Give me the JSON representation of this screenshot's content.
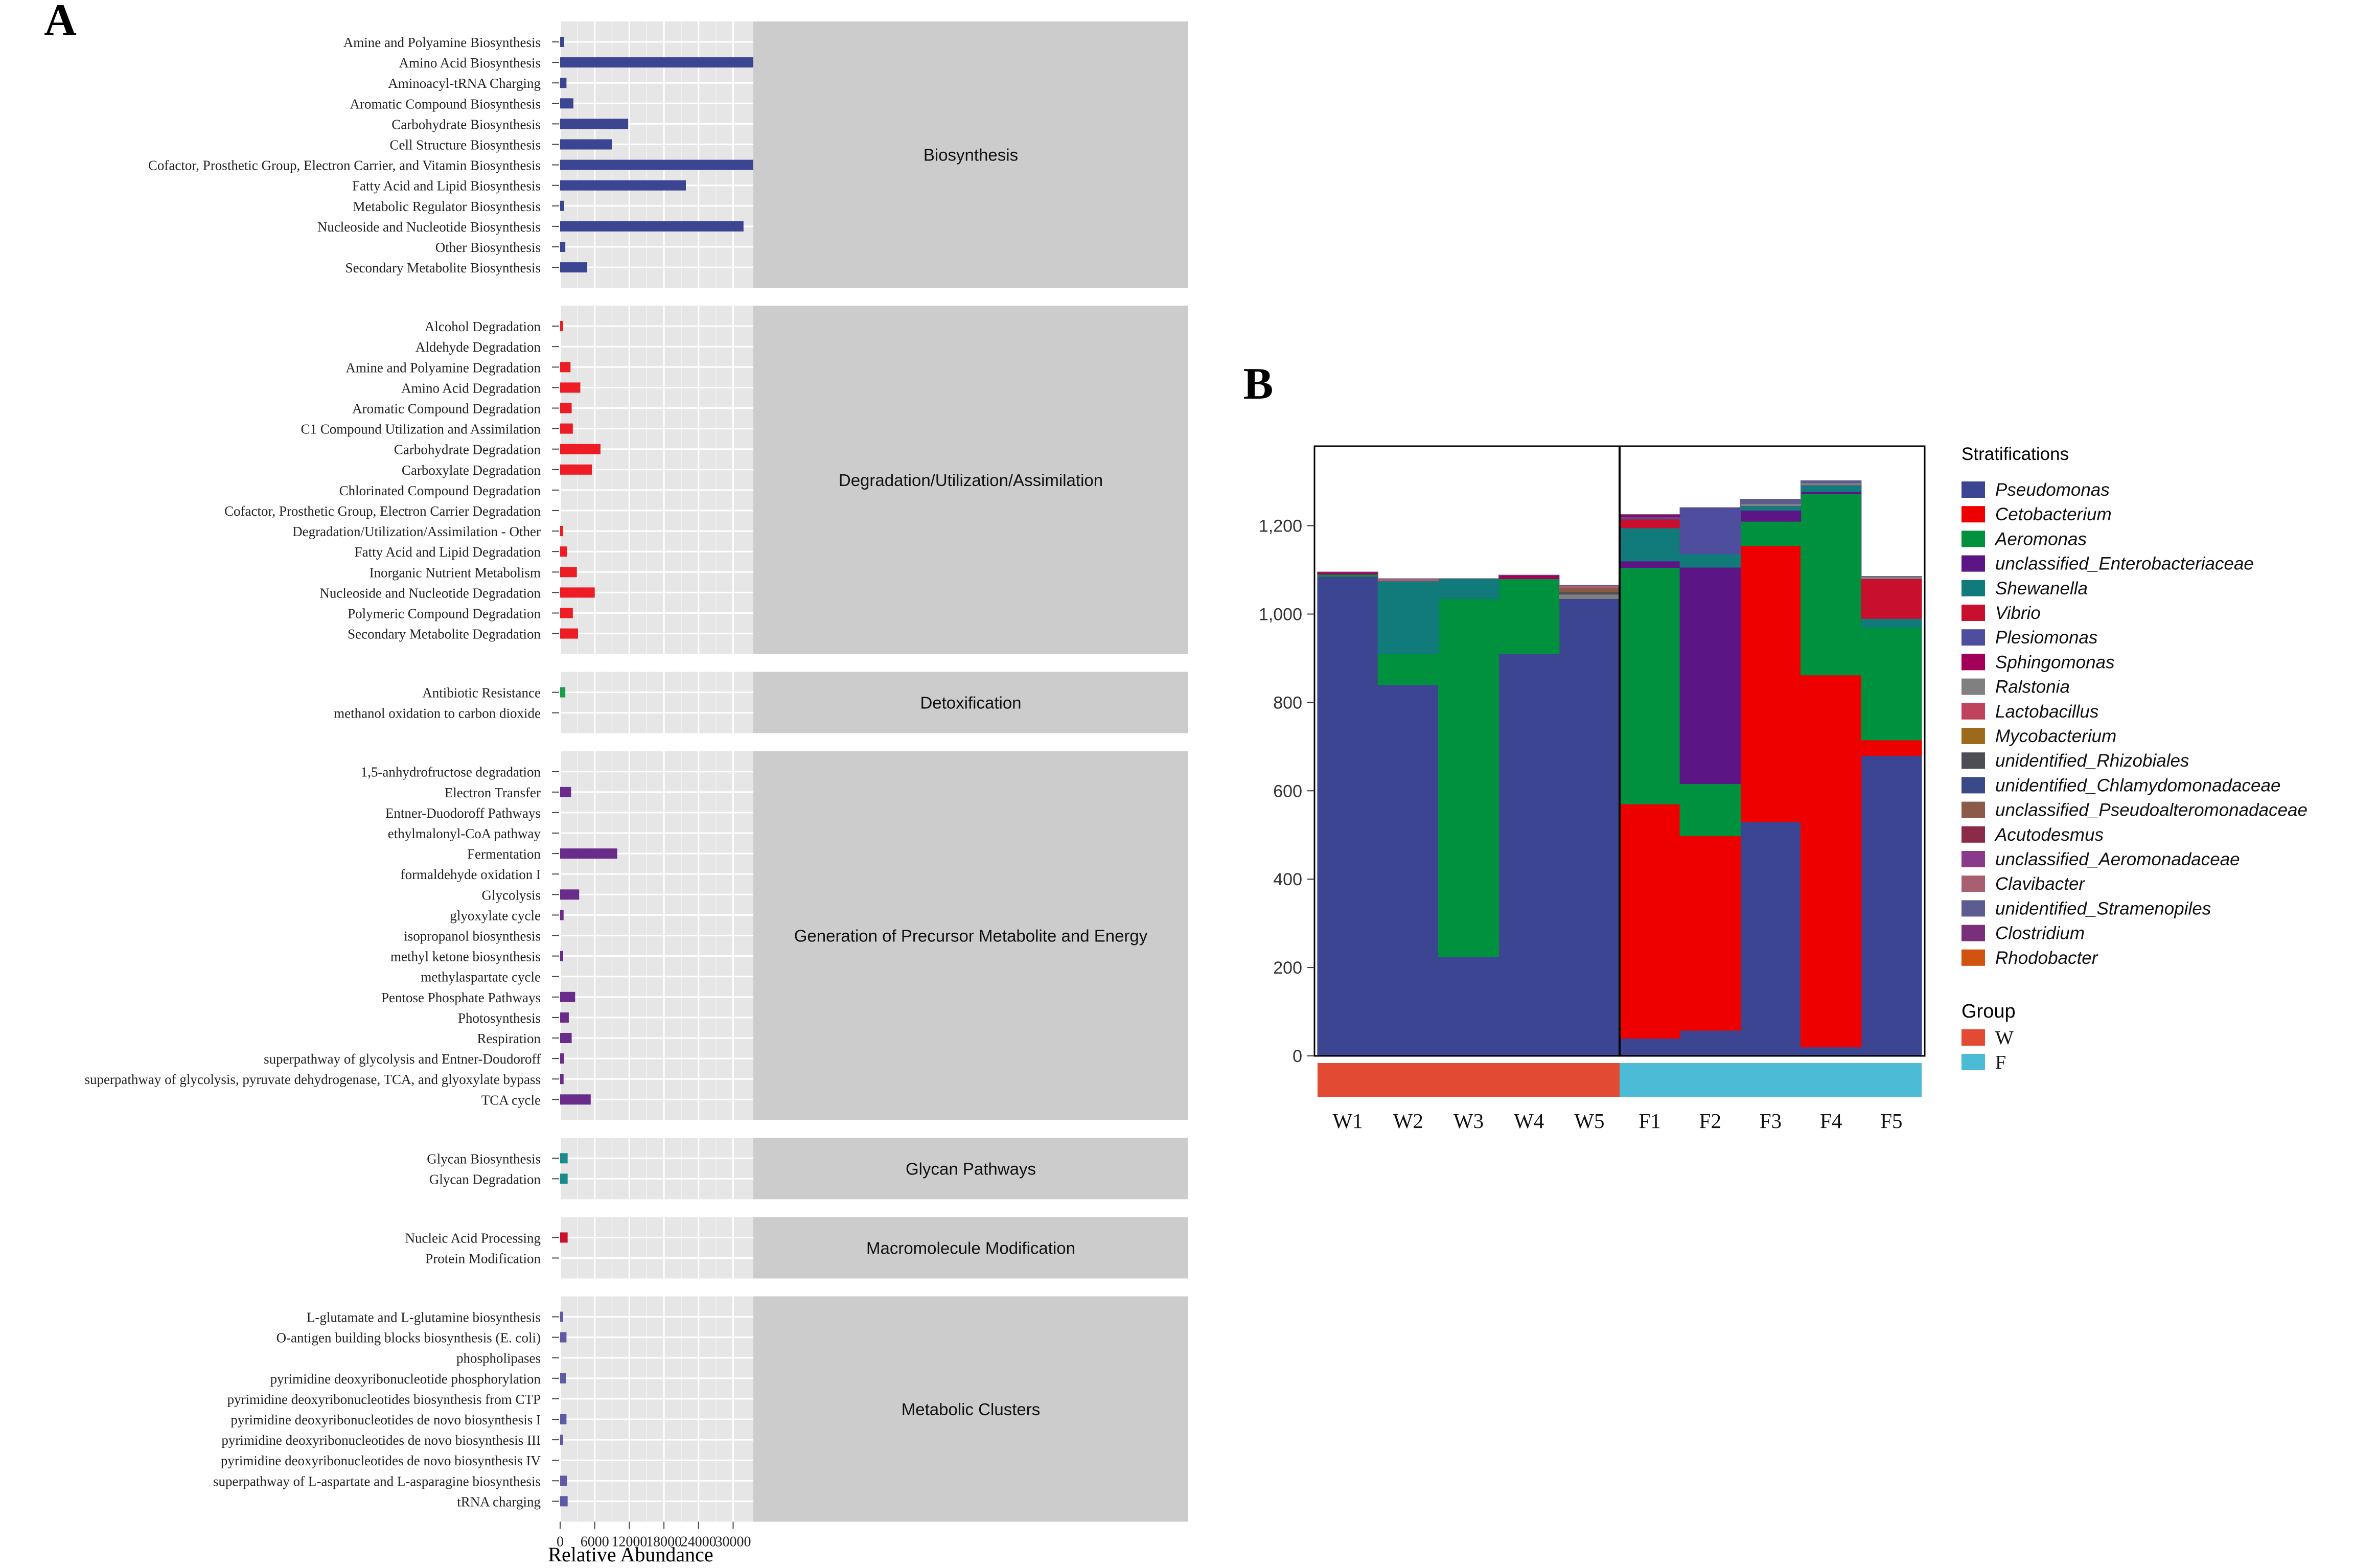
{
  "panel_a": {
    "label": "A",
    "xlabel": "Relative Abundance",
    "ticks": [
      {
        "v": 0,
        "t": "0"
      },
      {
        "v": 6000,
        "t": "6000"
      },
      {
        "v": 12000,
        "t": "12000"
      },
      {
        "v": 18000,
        "t": "18000"
      },
      {
        "v": 24000,
        "t": "24000"
      },
      {
        "v": 30000,
        "t": "30000"
      }
    ],
    "xmax": 33500
  },
  "panel_b": {
    "label": "B",
    "legend_title": "Stratifications",
    "group_title": "Group"
  },
  "chart_data": [
    {
      "type": "bar",
      "title": "",
      "xlabel": "Relative Abundance",
      "ylabel": "",
      "xlim": [
        0,
        33500
      ],
      "groups": [
        {
          "name": "Biosynthesis",
          "color": "#3c4591",
          "categories": [
            {
              "label": "Amine and Polyamine Biosynthesis",
              "value": 700
            },
            {
              "label": "Amino Acid Biosynthesis",
              "value": 33500
            },
            {
              "label": "Aminoacyl-tRNA Charging",
              "value": 1100
            },
            {
              "label": "Aromatic Compound Biosynthesis",
              "value": 2300
            },
            {
              "label": "Carbohydrate Biosynthesis",
              "value": 11800
            },
            {
              "label": "Cell Structure Biosynthesis",
              "value": 9000
            },
            {
              "label": "Cofactor, Prosthetic Group, Electron Carrier, and Vitamin Biosynthesis",
              "value": 33500
            },
            {
              "label": "Fatty Acid and Lipid Biosynthesis",
              "value": 21800
            },
            {
              "label": "Metabolic Regulator Biosynthesis",
              "value": 700
            },
            {
              "label": "Nucleoside and Nucleotide Biosynthesis",
              "value": 31800
            },
            {
              "label": "Other Biosynthesis",
              "value": 900
            },
            {
              "label": "Secondary Metabolite Biosynthesis",
              "value": 4700
            }
          ]
        },
        {
          "name": "Degradation/Utilization/Assimilation",
          "color": "#ee1c25",
          "categories": [
            {
              "label": "Alcohol Degradation",
              "value": 150
            },
            {
              "label": "Aldehyde Degradation",
              "value": 0
            },
            {
              "label": "Amine and Polyamine Degradation",
              "value": 1800
            },
            {
              "label": "Amino Acid Degradation",
              "value": 3500
            },
            {
              "label": "Aromatic Compound Degradation",
              "value": 2000
            },
            {
              "label": "C1 Compound Utilization and Assimilation",
              "value": 2200
            },
            {
              "label": "Carbohydrate Degradation",
              "value": 7000
            },
            {
              "label": "Carboxylate Degradation",
              "value": 5500
            },
            {
              "label": "Chlorinated Compound Degradation",
              "value": 0
            },
            {
              "label": "Cofactor, Prosthetic Group, Electron Carrier Degradation",
              "value": 0
            },
            {
              "label": "Degradation/Utilization/Assimilation - Other",
              "value": 400
            },
            {
              "label": "Fatty Acid and Lipid Degradation",
              "value": 1200
            },
            {
              "label": "Inorganic Nutrient Metabolism",
              "value": 2900
            },
            {
              "label": "Nucleoside and Nucleotide Degradation",
              "value": 6000
            },
            {
              "label": "Polymeric Compound Degradation",
              "value": 2200
            },
            {
              "label": "Secondary Metabolite Degradation",
              "value": 3100
            }
          ]
        },
        {
          "name": "Detoxification",
          "color": "#1b9e4b",
          "categories": [
            {
              "label": "Antibiotic Resistance",
              "value": 900
            },
            {
              "label": "methanol oxidation to carbon dioxide",
              "value": 0
            }
          ]
        },
        {
          "name": "Generation of Precursor Metabolite and Energy",
          "color": "#6a2c8a",
          "categories": [
            {
              "label": "1,5-anhydrofructose degradation",
              "value": 0
            },
            {
              "label": "Electron Transfer",
              "value": 1900
            },
            {
              "label": "Entner-Duodoroff Pathways",
              "value": 0
            },
            {
              "label": "ethylmalonyl-CoA pathway",
              "value": 0
            },
            {
              "label": "Fermentation",
              "value": 9900
            },
            {
              "label": "formaldehyde oxidation I",
              "value": 0
            },
            {
              "label": "Glycolysis",
              "value": 3300
            },
            {
              "label": "glyoxylate cycle",
              "value": 600
            },
            {
              "label": "isopropanol biosynthesis",
              "value": 0
            },
            {
              "label": "methyl ketone biosynthesis",
              "value": 400
            },
            {
              "label": "methylaspartate cycle",
              "value": 0
            },
            {
              "label": "Pentose Phosphate Pathways",
              "value": 2600
            },
            {
              "label": "Photosynthesis",
              "value": 1500
            },
            {
              "label": "Respiration",
              "value": 2000
            },
            {
              "label": "superpathway of glycolysis and Entner-Doudoroff",
              "value": 700
            },
            {
              "label": "superpathway of glycolysis, pyruvate dehydrogenase, TCA, and glyoxylate bypass",
              "value": 600
            },
            {
              "label": "TCA cycle",
              "value": 5300
            }
          ]
        },
        {
          "name": "Glycan Pathways",
          "color": "#1a8a8a",
          "categories": [
            {
              "label": "Glycan Biosynthesis",
              "value": 1300
            },
            {
              "label": "Glycan Degradation",
              "value": 1300
            }
          ]
        },
        {
          "name": "Macromolecule Modification",
          "color": "#c8102e",
          "categories": [
            {
              "label": "Nucleic Acid Processing",
              "value": 1300
            },
            {
              "label": "Protein Modification",
              "value": 0
            }
          ]
        },
        {
          "name": "Metabolic Clusters",
          "color": "#5e5aa3",
          "categories": [
            {
              "label": "L-glutamate and L-glutamine biosynthesis",
              "value": 300
            },
            {
              "label": "O-antigen building blocks biosynthesis (E. coli)",
              "value": 1100
            },
            {
              "label": "phospholipases",
              "value": 0
            },
            {
              "label": "pyrimidine deoxyribonucleotide phosphorylation",
              "value": 1000
            },
            {
              "label": "pyrimidine deoxyribonucleotides biosynthesis from CTP",
              "value": 0
            },
            {
              "label": "pyrimidine deoxyribonucleotides de novo biosynthesis I",
              "value": 1100
            },
            {
              "label": "pyrimidine deoxyribonucleotides de novo biosynthesis III",
              "value": 300
            },
            {
              "label": "pyrimidine deoxyribonucleotides de novo biosynthesis IV",
              "value": 0
            },
            {
              "label": "superpathway of L-aspartate and L-asparagine biosynthesis",
              "value": 1200
            },
            {
              "label": "tRNA charging",
              "value": 1300
            }
          ]
        }
      ]
    },
    {
      "type": "area",
      "title": "",
      "xlabel": "",
      "ylabel": "",
      "ylim": [
        0,
        1380
      ],
      "yticks": [
        {
          "v": 0,
          "t": "0"
        },
        {
          "v": 200,
          "t": "200"
        },
        {
          "v": 400,
          "t": "400"
        },
        {
          "v": 600,
          "t": "600"
        },
        {
          "v": 800,
          "t": "800"
        },
        {
          "v": 1000,
          "t": "1,000"
        },
        {
          "v": 1200,
          "t": "1,200"
        }
      ],
      "legend_title": "Stratifications",
      "legend_position": "right",
      "samples": [
        "W1",
        "W2",
        "W3",
        "W4",
        "W5",
        "F1",
        "F2",
        "F3",
        "F4",
        "F5"
      ],
      "groups": [
        {
          "name": "W",
          "color": "#e34a33",
          "samples": [
            "W1",
            "W2",
            "W3",
            "W4",
            "W5"
          ]
        },
        {
          "name": "F",
          "color": "#4bbbd6",
          "samples": [
            "F1",
            "F2",
            "F3",
            "F4",
            "F5"
          ]
        }
      ],
      "series": [
        {
          "name": "Pseudomonas",
          "color": "#3c4591",
          "values": [
            1085,
            840,
            225,
            910,
            1035,
            40,
            58,
            530,
            20,
            680
          ]
        },
        {
          "name": "Cetobacterium",
          "color": "#ee0000",
          "values": [
            0,
            0,
            0,
            0,
            0,
            530,
            440,
            625,
            842,
            35
          ]
        },
        {
          "name": "Aeromonas",
          "color": "#00913f",
          "values": [
            5,
            70,
            810,
            170,
            0,
            535,
            118,
            55,
            410,
            255
          ]
        },
        {
          "name": "unclassified_Enterobacteriaceae",
          "color": "#5c1585",
          "values": [
            0,
            0,
            0,
            0,
            0,
            15,
            490,
            25,
            5,
            0
          ]
        },
        {
          "name": "Shewanella",
          "color": "#117a7a",
          "values": [
            0,
            165,
            45,
            0,
            0,
            75,
            30,
            10,
            15,
            20
          ]
        },
        {
          "name": "Vibrio",
          "color": "#c8102e",
          "values": [
            0,
            0,
            0,
            0,
            0,
            20,
            0,
            0,
            0,
            90
          ]
        },
        {
          "name": "Plesiomonas",
          "color": "#4f4e9e",
          "values": [
            0,
            0,
            0,
            0,
            0,
            5,
            105,
            0,
            0,
            0
          ]
        },
        {
          "name": "Sphingomonas",
          "color": "#a3005a",
          "values": [
            5,
            0,
            0,
            8,
            0,
            5,
            0,
            0,
            0,
            0
          ]
        },
        {
          "name": "Ralstonia",
          "color": "#808080",
          "values": [
            0,
            0,
            0,
            0,
            10,
            0,
            0,
            5,
            5,
            5
          ]
        },
        {
          "name": "Lactobacillus",
          "color": "#c0435e",
          "values": [
            0,
            0,
            0,
            0,
            0,
            0,
            0,
            0,
            0,
            0
          ]
        },
        {
          "name": "Mycobacterium",
          "color": "#9c6a1c",
          "values": [
            0,
            0,
            0,
            0,
            0,
            0,
            0,
            0,
            0,
            0
          ]
        },
        {
          "name": "unidentified_Rhizobiales",
          "color": "#4d4d55",
          "values": [
            0,
            0,
            0,
            0,
            5,
            0,
            0,
            0,
            0,
            0
          ]
        },
        {
          "name": "unidentified_Chlamydomonadaceae",
          "color": "#3a4a88",
          "values": [
            0,
            0,
            0,
            0,
            0,
            0,
            0,
            0,
            0,
            0
          ]
        },
        {
          "name": "unclassified_Pseudoalteromonadaceae",
          "color": "#8c5a48",
          "values": [
            0,
            0,
            0,
            0,
            10,
            0,
            0,
            0,
            0,
            0
          ]
        },
        {
          "name": "Acutodesmus",
          "color": "#8c2b48",
          "values": [
            0,
            0,
            0,
            0,
            0,
            0,
            0,
            0,
            0,
            0
          ]
        },
        {
          "name": "unclassified_Aeromonadaceae",
          "color": "#8a3a8a",
          "values": [
            0,
            0,
            0,
            0,
            0,
            0,
            0,
            0,
            0,
            0
          ]
        },
        {
          "name": "Clavibacter",
          "color": "#a86070",
          "values": [
            0,
            5,
            0,
            0,
            5,
            0,
            0,
            0,
            0,
            0
          ]
        },
        {
          "name": "unidentified_Stramenopiles",
          "color": "#5c5c90",
          "values": [
            0,
            0,
            0,
            0,
            0,
            0,
            0,
            10,
            5,
            0
          ]
        },
        {
          "name": "Clostridium",
          "color": "#7a2f7a",
          "values": [
            0,
            0,
            0,
            0,
            0,
            0,
            0,
            0,
            0,
            0
          ]
        },
        {
          "name": "Rhodobacter",
          "color": "#d2520f",
          "values": [
            0,
            0,
            0,
            0,
            0,
            0,
            0,
            0,
            0,
            0
          ]
        }
      ]
    }
  ]
}
